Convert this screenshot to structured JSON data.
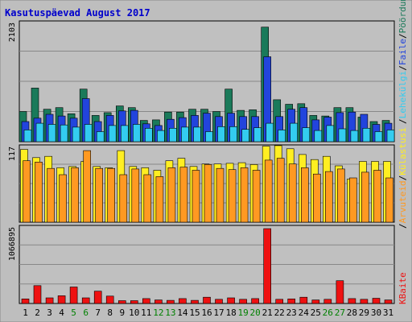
{
  "chart_data": {
    "type": "bar",
    "title": "Kasutuspäevad August 2017",
    "categories": [
      "1",
      "2",
      "3",
      "4",
      "5",
      "6",
      "7",
      "8",
      "9",
      "10",
      "11",
      "12",
      "13",
      "14",
      "15",
      "16",
      "17",
      "18",
      "19",
      "20",
      "21",
      "22",
      "23",
      "24",
      "25",
      "26",
      "27",
      "28",
      "29",
      "30",
      "31"
    ],
    "weekend_days": [
      "5",
      "6",
      "12",
      "13",
      "19",
      "20",
      "26",
      "27"
    ],
    "panels": [
      {
        "id": "traffic",
        "ylabel_max": "2103",
        "ylim": [
          0,
          2103
        ],
        "series": [
          {
            "name": "Pöördumisi",
            "color": "#1a7a5a",
            "values": [
              540,
              960,
              580,
              610,
              500,
              940,
              470,
              520,
              640,
              610,
              380,
              390,
              530,
              530,
              580,
              580,
              540,
              940,
              560,
              570,
              2050,
              750,
              670,
              680,
              470,
              460,
              610,
              610,
              440,
              360,
              380
            ]
          },
          {
            "name": "Faile",
            "color": "#2244dd",
            "values": [
              360,
              420,
              490,
              460,
              420,
              770,
              360,
              470,
              550,
              560,
              320,
              290,
              400,
              430,
              470,
              510,
              450,
              510,
              450,
              450,
              1520,
              450,
              580,
              610,
              390,
              440,
              520,
              530,
              490,
              310,
              330
            ]
          },
          {
            "name": "Lehekülgi",
            "color": "#33ccf0",
            "values": [
              210,
              330,
              310,
              300,
              260,
              310,
              180,
              290,
              290,
              310,
              240,
              200,
              240,
              260,
              260,
              180,
              270,
              270,
              220,
              250,
              330,
              210,
              330,
              250,
              200,
              290,
              230,
              200,
              240,
              180,
              210
            ]
          }
        ]
      },
      {
        "id": "visits",
        "ylabel_max": "117",
        "ylim": [
          0,
          117
        ],
        "series": [
          {
            "name": "Külastusi",
            "color": "#ffee22",
            "values": [
              115,
              102,
              104,
              86,
              88,
              96,
              88,
              86,
              113,
              88,
              86,
              82,
              97,
              101,
              88,
              92,
              92,
              93,
              94,
              91,
              120,
              121,
              116,
              107,
              99,
              104,
              89,
              68,
              96,
              96,
              96
            ]
          },
          {
            "name": "Arvuteid",
            "color": "#ff9922",
            "values": [
              97,
              95,
              85,
              75,
              86,
              113,
              85,
              85,
              75,
              84,
              75,
              72,
              86,
              87,
              82,
              91,
              85,
              83,
              86,
              82,
              98,
              101,
              92,
              86,
              76,
              80,
              84,
              70,
              79,
              82,
              70
            ]
          }
        ]
      },
      {
        "id": "kbytes",
        "ylabel_max": "1066895",
        "ylim": [
          0,
          1066895
        ],
        "series": [
          {
            "name": "KBaite",
            "color": "#ee1111",
            "values": [
              65000,
              255000,
              80000,
              110000,
              235000,
              80000,
              175000,
              105000,
              40000,
              40000,
              70000,
              50000,
              45000,
              70000,
              45000,
              90000,
              60000,
              80000,
              60000,
              70000,
              1066895,
              60000,
              65000,
              90000,
              50000,
              60000,
              325000,
              70000,
              60000,
              75000,
              50000
            ]
          }
        ]
      }
    ],
    "legend_separator": "/",
    "legend_right": [
      {
        "panel": "kbytes",
        "items": [
          "KBaite"
        ]
      },
      {
        "panel": "visits",
        "items": [
          "Arvuteid",
          "Külastusi"
        ]
      },
      {
        "panel": "traffic",
        "items": [
          "Lehekülgi",
          "Faile",
          "Pöördumisi"
        ]
      }
    ],
    "colors": {
      "background": "#ffffff",
      "frame": "#bebebe",
      "plot_bg": "#c0c0c0",
      "title": "#0000cc",
      "weekday_tick": "#000000",
      "weekend_tick": "#008000"
    }
  }
}
